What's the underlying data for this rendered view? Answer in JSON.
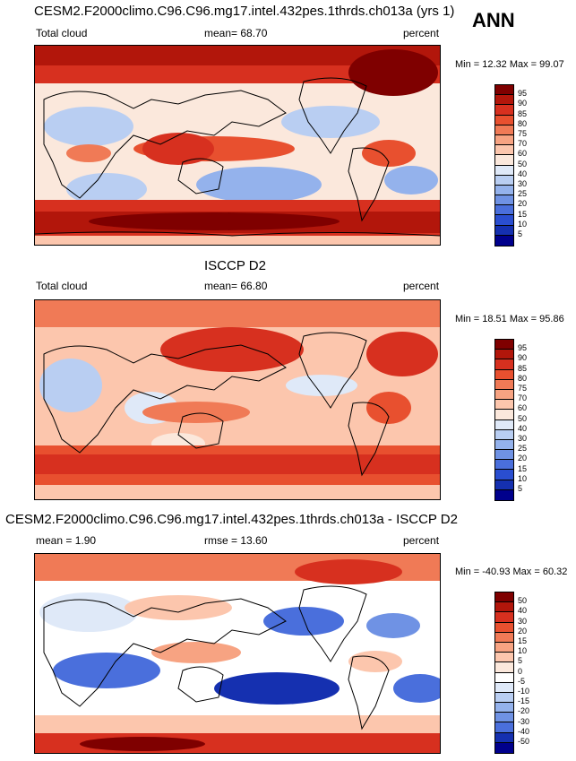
{
  "season": "ANN",
  "panels": [
    {
      "title": "CESM2.F2000climo.C96.C96.mg17.intel.432pes.1thrds.ch013a (yrs 1)",
      "left_label": "Total cloud",
      "center_label": "mean=  68.70",
      "units": "percent",
      "minmax": "Min =  12.32 Max =  99.07"
    },
    {
      "title": "ISCCP D2",
      "left_label": "Total cloud",
      "center_label": "mean=  66.80",
      "units": "percent",
      "minmax": "Min =  18.51 Max =  95.86"
    },
    {
      "title": "CESM2.F2000climo.C96.C96.mg17.intel.432pes.1thrds.ch013a - ISCCP D2",
      "left_label": "mean =   1.90",
      "center_label": "rmse =  13.60",
      "units": "percent",
      "minmax": "Min = -40.93 Max =  60.32"
    }
  ],
  "colorbar_abs": {
    "labels": [
      "95",
      "90",
      "85",
      "80",
      "75",
      "70",
      "60",
      "50",
      "40",
      "30",
      "25",
      "20",
      "15",
      "10",
      "5"
    ],
    "colors": [
      "#7f0000",
      "#b2160b",
      "#d7301f",
      "#e8502f",
      "#f07a56",
      "#f7a382",
      "#fcc6ad",
      "#fbe8dc",
      "#dfe9f8",
      "#b9cef2",
      "#94b2ec",
      "#6f92e4",
      "#4a6fdc",
      "#2a4ed0",
      "#1530b0",
      "#00008c"
    ]
  },
  "colorbar_diff": {
    "labels": [
      "50",
      "40",
      "30",
      "20",
      "15",
      "10",
      "5",
      "0",
      "-5",
      "-10",
      "-15",
      "-20",
      "-30",
      "-40",
      "-50"
    ],
    "colors": [
      "#7f0000",
      "#b2160b",
      "#d7301f",
      "#e8502f",
      "#f07a56",
      "#f7a382",
      "#fcc6ad",
      "#fbe8dc",
      "#ffffff",
      "#dfe9f8",
      "#b9cef2",
      "#94b2ec",
      "#6f92e4",
      "#4a6fdc",
      "#1530b0",
      "#00008c"
    ]
  }
}
